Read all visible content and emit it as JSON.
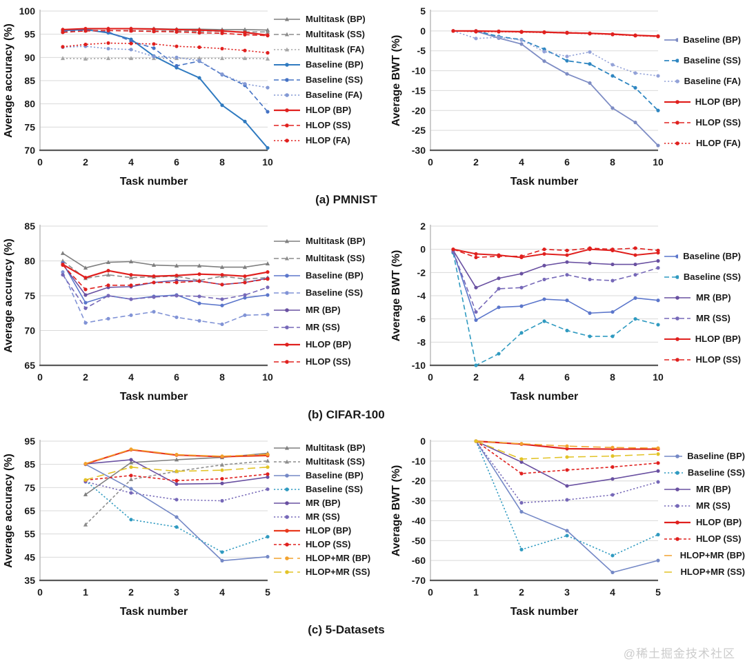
{
  "watermark": "@稀土掘金技术社区",
  "captions": [
    {
      "label": "(a) PMNIST"
    },
    {
      "label": "(b) CIFAR-100"
    },
    {
      "label": "(c) 5-Datasets"
    }
  ],
  "chart_data": [
    {
      "type": "line",
      "group": "PMNIST",
      "xlabel": "Task number",
      "ylabel": "Average accuracy (%)",
      "xlim": [
        0,
        10
      ],
      "xticks": [
        0,
        2,
        4,
        6,
        8,
        10
      ],
      "ylim": [
        70,
        100
      ],
      "yticks": [
        70,
        75,
        80,
        85,
        90,
        95,
        100
      ],
      "grid": "horizontal",
      "legend_position": "right",
      "x": [
        1,
        2,
        3,
        4,
        5,
        6,
        7,
        8,
        9,
        10
      ],
      "series": [
        {
          "name": "Multitask (BP)",
          "color": "#7f7f7f",
          "style": "solid",
          "marker": "triangle",
          "values": [
            96.0,
            96.1,
            96.2,
            96.2,
            96.2,
            96.1,
            96.1,
            96.0,
            96.0,
            95.9
          ]
        },
        {
          "name": "Multitask (SS)",
          "color": "#8c8c8c",
          "style": "dashed",
          "marker": "triangle",
          "values": [
            95.6,
            95.8,
            95.8,
            95.8,
            95.7,
            95.7,
            95.6,
            95.6,
            95.5,
            95.5
          ]
        },
        {
          "name": "Multitask (FA)",
          "color": "#a6a6a6",
          "style": "dotted",
          "marker": "triangle",
          "values": [
            89.8,
            89.7,
            89.8,
            89.8,
            89.8,
            89.8,
            89.8,
            89.8,
            89.8,
            89.7
          ]
        },
        {
          "name": "Baseline (BP)",
          "color": "#2f7ac0",
          "style": "solid",
          "width": 2,
          "values": [
            95.8,
            96.0,
            95.3,
            93.9,
            90.3,
            87.8,
            85.6,
            79.7,
            76.2,
            70.5
          ]
        },
        {
          "name": "Baseline (SS)",
          "color": "#4472c4",
          "style": "dashed",
          "values": [
            95.7,
            95.9,
            95.5,
            93.5,
            92.0,
            88.2,
            89.2,
            86.3,
            84.0,
            78.3
          ]
        },
        {
          "name": "Baseline (FA)",
          "color": "#8399d4",
          "style": "dotted",
          "values": [
            92.2,
            92.4,
            91.9,
            91.7,
            90.2,
            90.0,
            89.3,
            86.4,
            84.3,
            83.5
          ]
        },
        {
          "name": "HLOP (BP)",
          "color": "#e0201e",
          "style": "solid",
          "width": 2.2,
          "values": [
            96.0,
            96.2,
            96.2,
            96.2,
            96.1,
            96.0,
            95.9,
            95.7,
            95.4,
            94.8
          ]
        },
        {
          "name": "HLOP (SS)",
          "color": "#e0201e",
          "style": "dashed",
          "values": [
            95.4,
            95.7,
            95.8,
            95.7,
            95.6,
            95.5,
            95.3,
            95.2,
            94.9,
            94.7
          ]
        },
        {
          "name": "HLOP (FA)",
          "color": "#e0201e",
          "style": "dotted",
          "values": [
            92.3,
            92.8,
            93.1,
            93.0,
            92.9,
            92.4,
            92.2,
            91.9,
            91.5,
            91.0
          ]
        }
      ]
    },
    {
      "type": "line",
      "group": "PMNIST",
      "xlabel": "Task number",
      "ylabel": "Average BWT (%)",
      "xlim": [
        0,
        10
      ],
      "xticks": [
        0,
        2,
        4,
        6,
        8,
        10
      ],
      "ylim": [
        -30,
        5
      ],
      "yticks": [
        5,
        0,
        -5,
        -10,
        -15,
        -20,
        -25,
        -30
      ],
      "grid": "horizontal",
      "legend_position": "right",
      "x": [
        1,
        2,
        3,
        4,
        5,
        6,
        7,
        8,
        9,
        10
      ],
      "series": [
        {
          "name": "Baseline (BP)",
          "color": "#7d8cc4",
          "style": "solid",
          "width": 1.8,
          "values": [
            0,
            -0.1,
            -1.8,
            -3.3,
            -7.6,
            -10.8,
            -13.1,
            -19.4,
            -23.0,
            -28.8
          ]
        },
        {
          "name": "Baseline (SS)",
          "color": "#2e86c1",
          "style": "dashed",
          "width": 1.8,
          "values": [
            0,
            0.0,
            -1.4,
            -2.2,
            -4.6,
            -7.5,
            -8.3,
            -11.3,
            -14.3,
            -20.0
          ]
        },
        {
          "name": "Baseline (FA)",
          "color": "#93a2d8",
          "style": "dotted",
          "values": [
            0,
            -1.9,
            -1.6,
            -2.3,
            -5.2,
            -6.4,
            -5.3,
            -8.5,
            -10.6,
            -11.3
          ]
        },
        {
          "name": "HLOP (BP)",
          "color": "#e0201e",
          "style": "solid",
          "width": 2.2,
          "values": [
            0,
            0.0,
            -0.1,
            -0.2,
            -0.3,
            -0.5,
            -0.6,
            -0.8,
            -1.1,
            -1.3
          ]
        },
        {
          "name": "HLOP (SS)",
          "color": "#e0201e",
          "style": "dashed",
          "values": [
            0,
            -0.1,
            -0.1,
            -0.2,
            -0.3,
            -0.4,
            -0.6,
            -0.9,
            -1.1,
            -1.4
          ]
        },
        {
          "name": "HLOP (FA)",
          "color": "#e0201e",
          "style": "dotted",
          "values": [
            0,
            -0.2,
            -0.2,
            -0.3,
            -0.4,
            -0.5,
            -0.7,
            -0.9,
            -1.2,
            -1.4
          ]
        }
      ]
    },
    {
      "type": "line",
      "group": "CIFAR-100",
      "xlabel": "Task number",
      "ylabel": "Average accuracy (%)",
      "xlim": [
        0,
        10
      ],
      "xticks": [
        0,
        2,
        4,
        6,
        8,
        10
      ],
      "ylim": [
        65,
        85
      ],
      "yticks": [
        65,
        70,
        75,
        80,
        85
      ],
      "grid": "horizontal",
      "legend_position": "right",
      "x": [
        1,
        2,
        3,
        4,
        5,
        6,
        7,
        8,
        9,
        10
      ],
      "series": [
        {
          "name": "Multitask (BP)",
          "color": "#7f7f7f",
          "style": "solid",
          "marker": "triangle",
          "values": [
            81.1,
            79.0,
            79.8,
            79.9,
            79.4,
            79.3,
            79.3,
            79.1,
            79.1,
            79.6
          ]
        },
        {
          "name": "Multitask (SS)",
          "color": "#8c8c8c",
          "style": "dashed",
          "marker": "triangle",
          "values": [
            80.0,
            77.5,
            78.0,
            77.6,
            77.7,
            77.8,
            77.2,
            77.8,
            77.4,
            77.6
          ]
        },
        {
          "name": "Baseline (BP)",
          "color": "#5b76cb",
          "style": "solid",
          "values": [
            79.7,
            74.0,
            75.0,
            74.5,
            74.9,
            75.1,
            73.9,
            73.6,
            74.7,
            75.1
          ]
        },
        {
          "name": "Baseline (SS)",
          "color": "#8193d6",
          "style": "dashed",
          "values": [
            78.4,
            71.1,
            71.7,
            72.2,
            72.7,
            71.9,
            71.4,
            70.9,
            72.2,
            72.3
          ]
        },
        {
          "name": "MR (BP)",
          "color": "#6950a1",
          "style": "solid",
          "values": [
            79.5,
            75.1,
            76.2,
            76.3,
            76.9,
            77.2,
            77.1,
            76.6,
            76.9,
            77.5
          ]
        },
        {
          "name": "MR (SS)",
          "color": "#7668b8",
          "style": "dashed",
          "values": [
            78.0,
            73.2,
            75.0,
            74.5,
            74.8,
            75.0,
            74.9,
            74.5,
            75.1,
            76.2
          ]
        },
        {
          "name": "HLOP (BP)",
          "color": "#e0201e",
          "style": "solid",
          "width": 2.2,
          "values": [
            79.5,
            77.6,
            78.6,
            78.0,
            77.8,
            77.9,
            78.1,
            78.0,
            77.8,
            78.4
          ]
        },
        {
          "name": "HLOP (SS)",
          "color": "#e0201e",
          "style": "dashed",
          "values": [
            79.4,
            75.9,
            76.5,
            76.5,
            76.9,
            76.9,
            77.1,
            76.6,
            76.9,
            77.4
          ]
        }
      ]
    },
    {
      "type": "line",
      "group": "CIFAR-100",
      "xlabel": "Task number",
      "ylabel": "Average BWT (%)",
      "xlim": [
        0,
        10
      ],
      "xticks": [
        0,
        2,
        4,
        6,
        8,
        10
      ],
      "ylim": [
        -10,
        2
      ],
      "yticks": [
        2,
        0,
        -2,
        -4,
        -6,
        -8,
        -10
      ],
      "grid": "horizontal",
      "legend_position": "right",
      "x": [
        1,
        2,
        3,
        4,
        5,
        6,
        7,
        8,
        9,
        10
      ],
      "series": [
        {
          "name": "Baseline (BP)",
          "color": "#5b76cb",
          "style": "solid",
          "values": [
            -0.2,
            -6.1,
            -5.0,
            -4.9,
            -4.3,
            -4.4,
            -5.5,
            -5.4,
            -4.2,
            -4.4
          ]
        },
        {
          "name": "Baseline (SS)",
          "color": "#2f9ac0",
          "style": "dashed",
          "values": [
            -0.3,
            -10.2,
            -9.0,
            -7.2,
            -6.2,
            -7.0,
            -7.5,
            -7.5,
            -6.0,
            -6.5
          ]
        },
        {
          "name": "MR (BP)",
          "color": "#6950a1",
          "style": "solid",
          "values": [
            -0.1,
            -3.3,
            -2.5,
            -2.1,
            -1.4,
            -1.1,
            -1.2,
            -1.3,
            -1.3,
            -1.0
          ]
        },
        {
          "name": "MR (SS)",
          "color": "#7668b8",
          "style": "dashed",
          "values": [
            -0.2,
            -5.4,
            -3.4,
            -3.3,
            -2.6,
            -2.2,
            -2.6,
            -2.7,
            -2.2,
            -1.6
          ]
        },
        {
          "name": "HLOP (BP)",
          "color": "#e0201e",
          "style": "solid",
          "width": 2,
          "values": [
            0.0,
            -0.4,
            -0.5,
            -0.7,
            -0.4,
            -0.5,
            0.0,
            -0.1,
            -0.5,
            -0.3
          ]
        },
        {
          "name": "HLOP (SS)",
          "color": "#e0201e",
          "style": "dashed",
          "values": [
            0.0,
            -0.7,
            -0.6,
            -0.6,
            0.0,
            -0.1,
            0.1,
            0.0,
            0.1,
            -0.1
          ]
        }
      ]
    },
    {
      "type": "line",
      "group": "5-Datasets",
      "xlabel": "Task number",
      "ylabel": "Average accuracy (%)",
      "xlim": [
        0,
        5
      ],
      "xticks": [
        0,
        1,
        2,
        3,
        4,
        5
      ],
      "ylim": [
        35,
        95
      ],
      "yticks": [
        35,
        45,
        55,
        65,
        75,
        85,
        95
      ],
      "grid": "horizontal",
      "legend_position": "right",
      "x": [
        1,
        2,
        3,
        4,
        5
      ],
      "series": [
        {
          "name": "Multitask (BP)",
          "color": "#7f7f7f",
          "style": "solid",
          "marker": "triangle",
          "values": [
            72.0,
            85.8,
            87.0,
            88.0,
            89.8
          ]
        },
        {
          "name": "Multitask (SS)",
          "color": "#8c8c8c",
          "style": "shortdash",
          "marker": "triangle",
          "values": [
            59.0,
            78.5,
            82.0,
            84.8,
            86.5
          ]
        },
        {
          "name": "Baseline (BP)",
          "color": "#7488c6",
          "style": "solid",
          "values": [
            85.0,
            74.5,
            62.3,
            43.5,
            45.2
          ]
        },
        {
          "name": "Baseline (SS)",
          "color": "#2f9ac0",
          "style": "dotted",
          "values": [
            78.0,
            61.2,
            58.0,
            47.2,
            53.8
          ]
        },
        {
          "name": "MR (BP)",
          "color": "#6950a1",
          "style": "solid",
          "values": [
            85.2,
            87.0,
            76.5,
            76.8,
            79.5
          ]
        },
        {
          "name": "MR (SS)",
          "color": "#7668b8",
          "style": "dotted",
          "values": [
            77.5,
            72.7,
            69.8,
            69.3,
            74.3
          ]
        },
        {
          "name": "HLOP (BP)",
          "color": "#e8391d",
          "style": "solid",
          "width": 2.2,
          "values": [
            85.2,
            91.3,
            89.0,
            88.3,
            88.8
          ]
        },
        {
          "name": "HLOP (SS)",
          "color": "#e0201e",
          "style": "shortdash",
          "values": [
            78.2,
            80.2,
            78.0,
            78.8,
            80.8
          ]
        },
        {
          "name": "HLOP+MR (BP)",
          "color": "#f2a22e",
          "style": "longdash",
          "values": [
            85.3,
            91.5,
            89.2,
            88.5,
            89.3
          ]
        },
        {
          "name": "HLOP+MR (SS)",
          "color": "#e2c327",
          "style": "longdash",
          "values": [
            78.3,
            83.8,
            82.0,
            82.5,
            83.8
          ]
        }
      ]
    },
    {
      "type": "line",
      "group": "5-Datasets",
      "xlabel": "Task number",
      "ylabel": "Average BWT (%)",
      "xlim": [
        0,
        5
      ],
      "xticks": [
        0,
        1,
        2,
        3,
        4,
        5
      ],
      "ylim": [
        -70,
        0
      ],
      "yticks": [
        0,
        -10,
        -20,
        -30,
        -40,
        -50,
        -60,
        -70
      ],
      "grid": "horizontal",
      "legend_position": "right",
      "x": [
        1,
        2,
        3,
        4,
        5
      ],
      "series": [
        {
          "name": "Baseline (BP)",
          "color": "#7488c6",
          "style": "solid",
          "values": [
            0,
            -35.5,
            -45.0,
            -66.0,
            -60.0
          ]
        },
        {
          "name": "Baseline (SS)",
          "color": "#2f9ac0",
          "style": "dotted",
          "values": [
            0,
            -54.5,
            -47.5,
            -57.5,
            -47.0
          ]
        },
        {
          "name": "MR (BP)",
          "color": "#6950a1",
          "style": "solid",
          "values": [
            0,
            -10.5,
            -22.5,
            -19.0,
            -15.0
          ]
        },
        {
          "name": "MR (SS)",
          "color": "#7668b8",
          "style": "dotted",
          "values": [
            0,
            -31.0,
            -29.5,
            -27.0,
            -20.5
          ]
        },
        {
          "name": "HLOP (BP)",
          "color": "#e0201e",
          "style": "solid",
          "width": 2.2,
          "values": [
            0,
            -1.5,
            -3.8,
            -4.0,
            -4.0
          ]
        },
        {
          "name": "HLOP (SS)",
          "color": "#e0201e",
          "style": "shortdash",
          "values": [
            0,
            -16.3,
            -14.5,
            -13.0,
            -11.0
          ]
        },
        {
          "name": "HLOP+MR (BP)",
          "color": "#f2a22e",
          "style": "longdash",
          "values": [
            0,
            -1.3,
            -2.5,
            -3.2,
            -3.5
          ]
        },
        {
          "name": "HLOP+MR (SS)",
          "color": "#e2c327",
          "style": "longdash",
          "values": [
            0,
            -9.0,
            -8.0,
            -7.5,
            -6.5
          ]
        }
      ]
    }
  ]
}
